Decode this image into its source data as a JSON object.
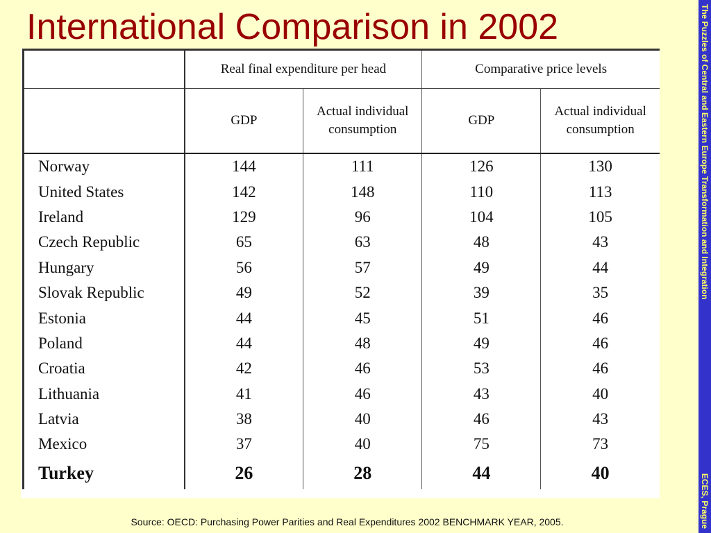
{
  "slide": {
    "title": "International Comparison in 2002",
    "sidebar_top": "The Puzzles of Central and Eastern Europe Transformation and Integration",
    "sidebar_bottom": "ECES, Prague",
    "source": "Source: OECD: Purchasing Power Parities and Real Expenditures 2002 BENCHMARK YEAR, 2005."
  },
  "table": {
    "group_headers": [
      "Real final expenditure per head",
      "Comparative price levels"
    ],
    "sub_headers": [
      "GDP",
      "Actual individual consumption",
      "GDP",
      "Actual individual consumption"
    ],
    "rows": [
      {
        "country": "Norway",
        "v": [
          "144",
          "111",
          "126",
          "130"
        ]
      },
      {
        "country": "United States",
        "v": [
          "142",
          "148",
          "110",
          "113"
        ]
      },
      {
        "country": "Ireland",
        "v": [
          "129",
          "96",
          "104",
          "105"
        ]
      },
      {
        "country": "Czech Republic",
        "v": [
          "65",
          "63",
          "48",
          "43"
        ]
      },
      {
        "country": "Hungary",
        "v": [
          "56",
          "57",
          "49",
          "44"
        ]
      },
      {
        "country": "Slovak Republic",
        "v": [
          "49",
          "52",
          "39",
          "35"
        ]
      },
      {
        "country": "Estonia",
        "v": [
          "44",
          "45",
          "51",
          "46"
        ]
      },
      {
        "country": "Poland",
        "v": [
          "44",
          "48",
          "49",
          "46"
        ]
      },
      {
        "country": "Croatia",
        "v": [
          "42",
          "46",
          "53",
          "46"
        ]
      },
      {
        "country": "Lithuania",
        "v": [
          "41",
          "46",
          "43",
          "40"
        ]
      },
      {
        "country": "Latvia",
        "v": [
          "38",
          "40",
          "46",
          "43"
        ]
      },
      {
        "country": "Mexico",
        "v": [
          "37",
          "40",
          "75",
          "73"
        ]
      },
      {
        "country": "Turkey",
        "v": [
          "26",
          "28",
          "44",
          "40"
        ]
      }
    ]
  }
}
